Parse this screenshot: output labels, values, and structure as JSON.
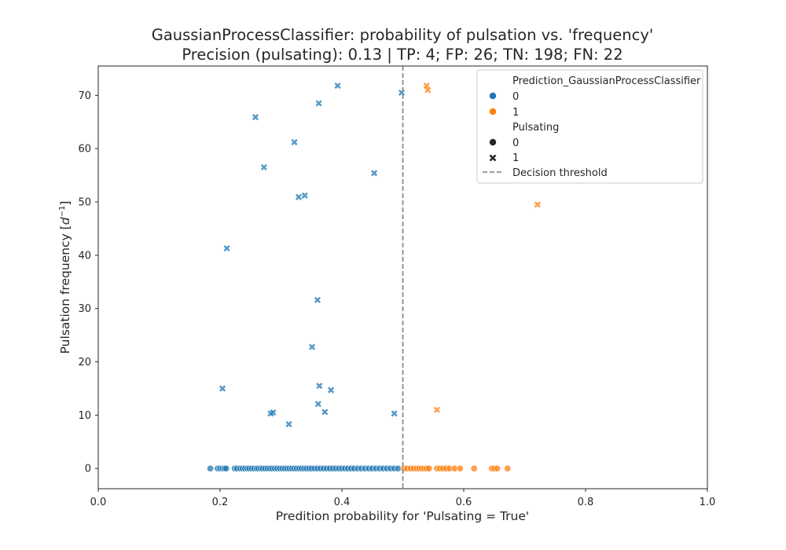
{
  "chart_data": {
    "type": "scatter",
    "title": "GaussianProcessClassifier: probability of pulsation vs. 'frequency'",
    "subtitle": "Precision (pulsating): 0.13 | TP: 4; FP: 26; TN: 198; FN: 22",
    "xlabel": "Predition probability for 'Pulsating = True'",
    "ylabel_main": "Pulsation frequency [",
    "ylabel_base": "d",
    "ylabel_sup": "−1",
    "ylabel_close": "]",
    "xlim": [
      0.0,
      1.0
    ],
    "ylim": [
      -3.8,
      75.5
    ],
    "xticks": [
      0.0,
      0.2,
      0.4,
      0.6,
      0.8,
      1.0
    ],
    "xtick_labels": [
      "0.0",
      "0.2",
      "0.4",
      "0.6",
      "0.8",
      "1.0"
    ],
    "yticks": [
      0,
      10,
      20,
      30,
      40,
      50,
      60,
      70
    ],
    "ytick_labels": [
      "0",
      "10",
      "20",
      "30",
      "40",
      "50",
      "60",
      "70"
    ],
    "grid": false,
    "decision_threshold": 0.5,
    "colors": {
      "prediction_0": "#1f77b4",
      "prediction_1": "#ff7f0e",
      "threshold": "#7f7f7f"
    },
    "legend": {
      "placement": "top-right",
      "hue_title": "Prediction_GaussianProcessClassifier",
      "hue_entries": [
        "0",
        "1"
      ],
      "style_title": "Pulsating",
      "style_entries": [
        "0",
        "1"
      ],
      "line_entry": "Decision threshold"
    },
    "series": [
      {
        "prediction": 0,
        "pulsating": 0,
        "x": [
          0.184,
          0.196,
          0.2,
          0.204,
          0.207,
          0.21,
          0.224,
          0.228,
          0.233,
          0.237,
          0.241,
          0.245,
          0.248,
          0.252,
          0.256,
          0.26,
          0.263,
          0.267,
          0.27,
          0.274,
          0.278,
          0.282,
          0.286,
          0.29,
          0.294,
          0.298,
          0.302,
          0.306,
          0.31,
          0.314,
          0.318,
          0.322,
          0.326,
          0.33,
          0.334,
          0.338,
          0.342,
          0.346,
          0.35,
          0.355,
          0.36,
          0.365,
          0.37,
          0.375,
          0.38,
          0.385,
          0.39,
          0.395,
          0.4,
          0.405,
          0.41,
          0.415,
          0.42,
          0.426,
          0.432,
          0.438,
          0.444,
          0.45,
          0.456,
          0.462,
          0.468,
          0.474,
          0.48,
          0.486,
          0.492
        ],
        "y": [
          0,
          0,
          0,
          0,
          0,
          0,
          0,
          0,
          0,
          0,
          0,
          0,
          0,
          0,
          0,
          0,
          0,
          0,
          0,
          0,
          0,
          0,
          0,
          0,
          0,
          0,
          0,
          0,
          0,
          0,
          0,
          0,
          0,
          0,
          0,
          0,
          0,
          0,
          0,
          0,
          0,
          0,
          0,
          0,
          0,
          0,
          0,
          0,
          0,
          0,
          0,
          0,
          0,
          0,
          0,
          0,
          0,
          0,
          0,
          0,
          0,
          0,
          0,
          0,
          0
        ]
      },
      {
        "prediction": 0,
        "pulsating": 1,
        "x": [
          0.393,
          0.362,
          0.258,
          0.322,
          0.272,
          0.453,
          0.339,
          0.329,
          0.211,
          0.36,
          0.351,
          0.204,
          0.363,
          0.382,
          0.361,
          0.283,
          0.287,
          0.372,
          0.486,
          0.313,
          0.498
        ],
        "y": [
          71.8,
          68.5,
          65.9,
          61.2,
          56.5,
          55.4,
          51.2,
          50.9,
          41.3,
          31.6,
          22.8,
          15.0,
          15.5,
          14.7,
          12.1,
          10.3,
          10.5,
          10.6,
          10.3,
          8.3,
          70.5
        ]
      },
      {
        "prediction": 1,
        "pulsating": 0,
        "x": [
          0.502,
          0.507,
          0.513,
          0.518,
          0.523,
          0.527,
          0.531,
          0.535,
          0.539,
          0.543,
          0.556,
          0.561,
          0.566,
          0.571,
          0.577,
          0.585,
          0.594,
          0.617,
          0.646,
          0.65,
          0.655,
          0.672
        ],
        "y": [
          0,
          0,
          0,
          0,
          0,
          0,
          0,
          0,
          0,
          0,
          0,
          0,
          0,
          0,
          0,
          0,
          0,
          0,
          0,
          0,
          0,
          0
        ]
      },
      {
        "prediction": 1,
        "pulsating": 1,
        "x": [
          0.539,
          0.541,
          0.721,
          0.556
        ],
        "y": [
          71.8,
          71.0,
          49.5,
          11.0
        ]
      }
    ]
  }
}
